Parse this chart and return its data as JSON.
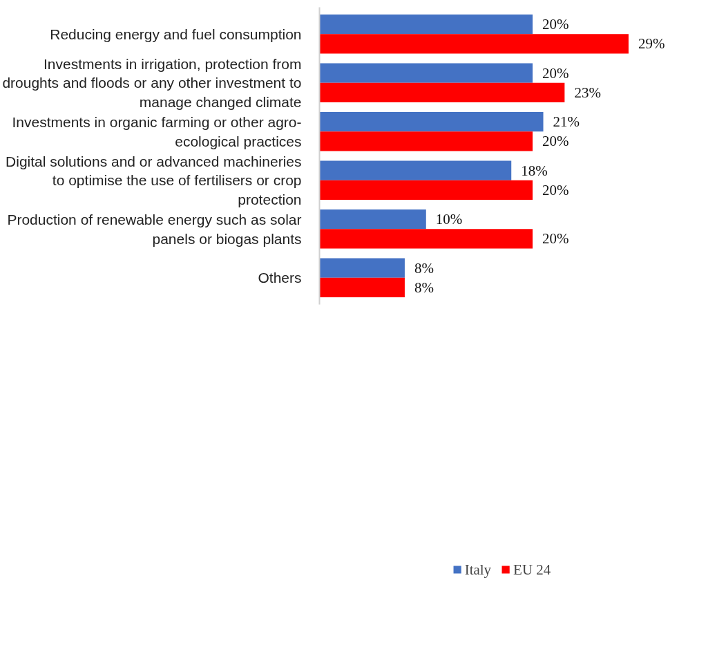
{
  "chart_data": {
    "type": "bar",
    "orientation": "horizontal",
    "categories": [
      "Reducing energy and fuel consumption",
      "Investments in irrigation, protection from droughts and floods or any other investment to manage changed climate",
      "Investments in organic farming or other agro-ecological practices",
      "Digital solutions and or advanced machineries to optimise the use of fertilisers or crop protection",
      "Production of renewable energy such as solar panels or biogas plants",
      "Others"
    ],
    "series": [
      {
        "name": "Italy",
        "color": "#4472c4",
        "values": [
          20,
          20,
          21,
          18,
          10,
          8
        ],
        "value_labels": [
          "20%",
          "20%",
          "21%",
          "18%",
          "10%",
          "8%"
        ]
      },
      {
        "name": "EU 24",
        "color": "#ff0000",
        "values": [
          29,
          23,
          20,
          20,
          20,
          8
        ],
        "value_labels": [
          "29%",
          "23%",
          "20%",
          "20%",
          "20%",
          "8%"
        ]
      }
    ],
    "legend": "bottom",
    "grid": false
  }
}
